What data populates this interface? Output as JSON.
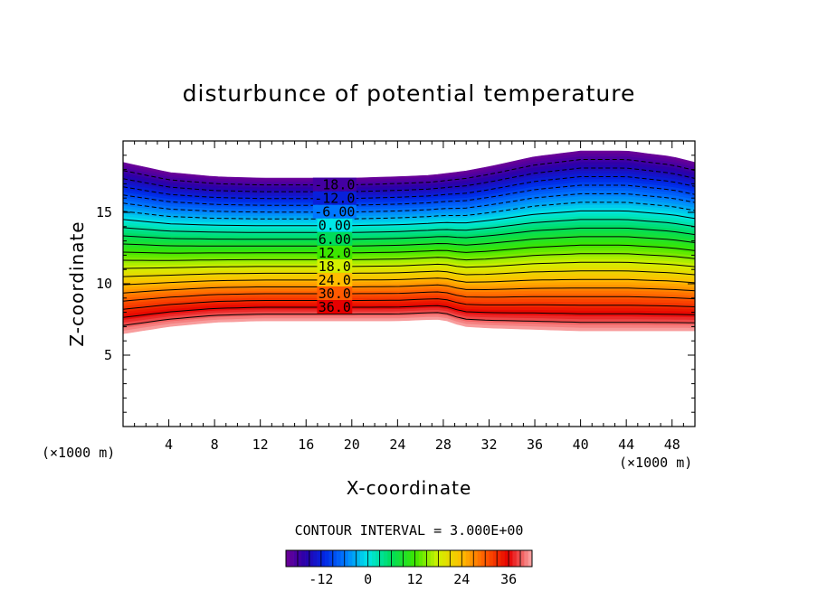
{
  "chart_data": {
    "type": "contour",
    "title": "disturbunce of potential temperature",
    "xlabel": "X-coordinate",
    "ylabel": "Z-coordinate",
    "x_unit_left": "(×1000 m)",
    "x_unit_right": "(×1000 m)",
    "xlim": [
      0,
      50
    ],
    "ylim": [
      0,
      20
    ],
    "x_ticks": [
      "4",
      "8",
      "12",
      "16",
      "20",
      "24",
      "28",
      "32",
      "36",
      "40",
      "44",
      "48"
    ],
    "x_tick_values": [
      4,
      8,
      12,
      16,
      20,
      24,
      28,
      32,
      36,
      40,
      44,
      48
    ],
    "y_ticks": [
      "5",
      "10",
      "15"
    ],
    "y_tick_values": [
      5,
      10,
      15
    ],
    "contour_interval_text": "CONTOUR INTERVAL = 3.000E+00",
    "contour_interval": 3,
    "value_range": [
      -21,
      42
    ],
    "contour_labels": [
      "-18.0",
      "-12.0",
      "-6.00",
      "0.00",
      "6.00",
      "12.0",
      "18.0",
      "24.0",
      "30.0",
      "36.0"
    ],
    "contour_label_values": [
      -18,
      -12,
      -6,
      0,
      6,
      12,
      18,
      24,
      30,
      36
    ],
    "colorbar_ticks": [
      "-12",
      "0",
      "12",
      "24",
      "36"
    ],
    "colorbar_tick_values": [
      -12,
      0,
      12,
      24,
      36
    ],
    "field_description_points": {
      "x": [
        0,
        4,
        8,
        12,
        16,
        20,
        24,
        27,
        28,
        29,
        30,
        32,
        36,
        40,
        44,
        48,
        50
      ],
      "bottom_edge_z": [
        6.5,
        7.0,
        7.3,
        7.4,
        7.4,
        7.4,
        7.4,
        7.5,
        7.5,
        7.2,
        7.0,
        6.9,
        6.8,
        6.7,
        6.7,
        6.7,
        6.7
      ],
      "top_edge_z": [
        18.5,
        17.8,
        17.5,
        17.4,
        17.4,
        17.4,
        17.5,
        17.6,
        17.7,
        17.8,
        17.9,
        18.2,
        18.9,
        19.3,
        19.3,
        18.9,
        18.5
      ]
    }
  }
}
